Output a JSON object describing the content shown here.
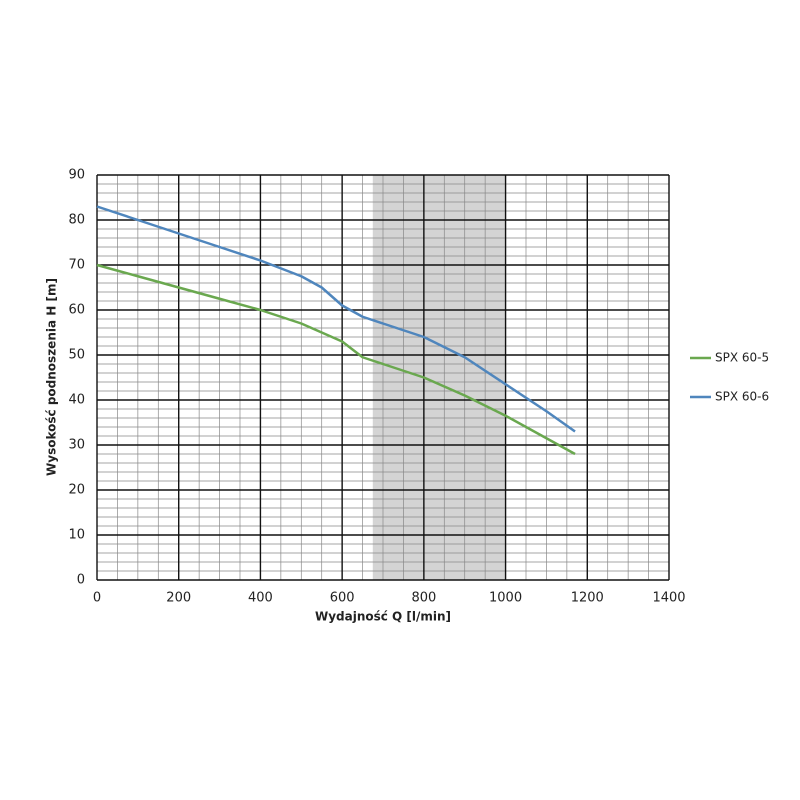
{
  "chart_data": {
    "type": "line",
    "x_label": "Wydajność Q [l/min]",
    "y_label": "Wysokość podnoszenia H [m]",
    "xlim": [
      0,
      1400
    ],
    "xticks": [
      0,
      200,
      400,
      600,
      800,
      1000,
      1200,
      1400
    ],
    "ylim": [
      0,
      90
    ],
    "yticks": [
      0,
      10,
      20,
      30,
      40,
      50,
      60,
      70,
      80,
      90
    ],
    "grid": true,
    "legend": "right",
    "shaded_region": {
      "x": [
        675,
        1000
      ],
      "color": "#d4d4d4"
    },
    "series": [
      {
        "name": "SPX 60-5",
        "color": "#6aa84f",
        "x": [
          0,
          100,
          200,
          300,
          400,
          500,
          600,
          650,
          700,
          800,
          900,
          1000,
          1100,
          1170
        ],
        "values": [
          70,
          67.5,
          65,
          62.5,
          60,
          57,
          53,
          49.5,
          48,
          45,
          41,
          36.5,
          31.5,
          28
        ]
      },
      {
        "name": "SPX 60-6",
        "color": "#4f86bd",
        "x": [
          0,
          100,
          200,
          300,
          400,
          500,
          550,
          600,
          650,
          700,
          800,
          900,
          1000,
          1100,
          1170
        ],
        "values": [
          83,
          80,
          77,
          74,
          71,
          67.5,
          65,
          61,
          58.5,
          57,
          54,
          49.5,
          43.5,
          37.5,
          33
        ]
      }
    ]
  }
}
